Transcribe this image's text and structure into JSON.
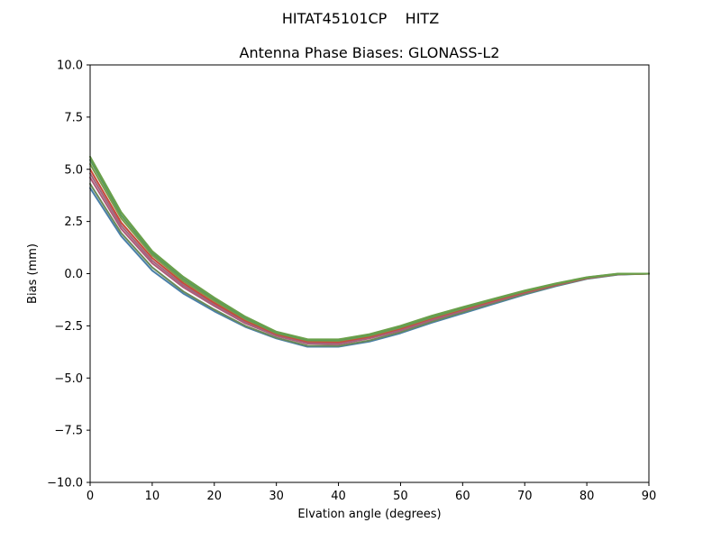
{
  "suptitle": "HITAT45101CP    HITZ",
  "chart_data": {
    "type": "line",
    "title": "Antenna Phase Biases: GLONASS-L2",
    "xlabel": "Elvation angle (degrees)",
    "ylabel": "Bias (mm)",
    "xlim": [
      0,
      90
    ],
    "ylim": [
      -10,
      10
    ],
    "xticks": [
      0,
      10,
      20,
      30,
      40,
      50,
      60,
      70,
      80,
      90
    ],
    "xtick_labels": [
      "0",
      "10",
      "20",
      "30",
      "40",
      "50",
      "60",
      "70",
      "80",
      "90"
    ],
    "yticks": [
      -10,
      -7.5,
      -5,
      -2.5,
      0,
      2.5,
      5,
      7.5,
      10
    ],
    "ytick_labels": [
      "−10.0",
      "−7.5",
      "−5.0",
      "−2.5",
      "0.0",
      "2.5",
      "5.0",
      "7.5",
      "10.0"
    ],
    "grid": false,
    "legend": "none",
    "x": [
      0,
      5,
      10,
      15,
      20,
      25,
      30,
      35,
      40,
      45,
      50,
      55,
      60,
      65,
      70,
      75,
      80,
      85,
      90
    ],
    "series": [
      {
        "color": "#4a7fa8",
        "values": [
          4.1,
          1.8,
          0.15,
          -0.95,
          -1.8,
          -2.55,
          -3.1,
          -3.5,
          -3.5,
          -3.25,
          -2.85,
          -2.35,
          -1.9,
          -1.45,
          -1.0,
          -0.6,
          -0.25,
          -0.05,
          0.0
        ]
      },
      {
        "color": "#6a8a5a",
        "values": [
          4.3,
          1.95,
          0.3,
          -0.85,
          -1.72,
          -2.5,
          -3.07,
          -3.45,
          -3.46,
          -3.2,
          -2.8,
          -2.3,
          -1.85,
          -1.4,
          -0.97,
          -0.58,
          -0.24,
          -0.04,
          0.0
        ]
      },
      {
        "color": "#b05a78",
        "values": [
          4.6,
          2.15,
          0.5,
          -0.65,
          -1.55,
          -2.38,
          -2.98,
          -3.35,
          -3.38,
          -3.1,
          -2.72,
          -2.22,
          -1.78,
          -1.35,
          -0.92,
          -0.55,
          -0.22,
          -0.03,
          0.0
        ]
      },
      {
        "color": "#a0667e",
        "values": [
          4.8,
          2.3,
          0.62,
          -0.55,
          -1.48,
          -2.32,
          -2.95,
          -3.3,
          -3.33,
          -3.06,
          -2.68,
          -2.18,
          -1.75,
          -1.32,
          -0.9,
          -0.53,
          -0.21,
          -0.03,
          0.0
        ]
      },
      {
        "color": "#c84a3c",
        "values": [
          5.0,
          2.45,
          0.75,
          -0.45,
          -1.4,
          -2.25,
          -2.9,
          -3.25,
          -3.28,
          -3.02,
          -2.63,
          -2.14,
          -1.71,
          -1.29,
          -0.88,
          -0.52,
          -0.2,
          -0.02,
          0.0
        ]
      },
      {
        "color": "#7a9a4a",
        "values": [
          5.25,
          2.65,
          0.88,
          -0.35,
          -1.3,
          -2.18,
          -2.85,
          -3.2,
          -3.22,
          -2.97,
          -2.58,
          -2.1,
          -1.67,
          -1.25,
          -0.85,
          -0.5,
          -0.19,
          -0.02,
          0.0
        ]
      },
      {
        "color": "#5a9a5a",
        "values": [
          5.45,
          2.8,
          0.98,
          -0.25,
          -1.22,
          -2.12,
          -2.82,
          -3.17,
          -3.18,
          -2.93,
          -2.54,
          -2.06,
          -1.63,
          -1.22,
          -0.83,
          -0.48,
          -0.18,
          -0.01,
          0.0
        ]
      },
      {
        "color": "#6aa04a",
        "values": [
          5.6,
          2.95,
          1.08,
          -0.15,
          -1.15,
          -2.06,
          -2.78,
          -3.14,
          -3.15,
          -2.9,
          -2.5,
          -2.02,
          -1.6,
          -1.2,
          -0.81,
          -0.47,
          -0.17,
          0.0,
          0.0
        ]
      }
    ]
  }
}
